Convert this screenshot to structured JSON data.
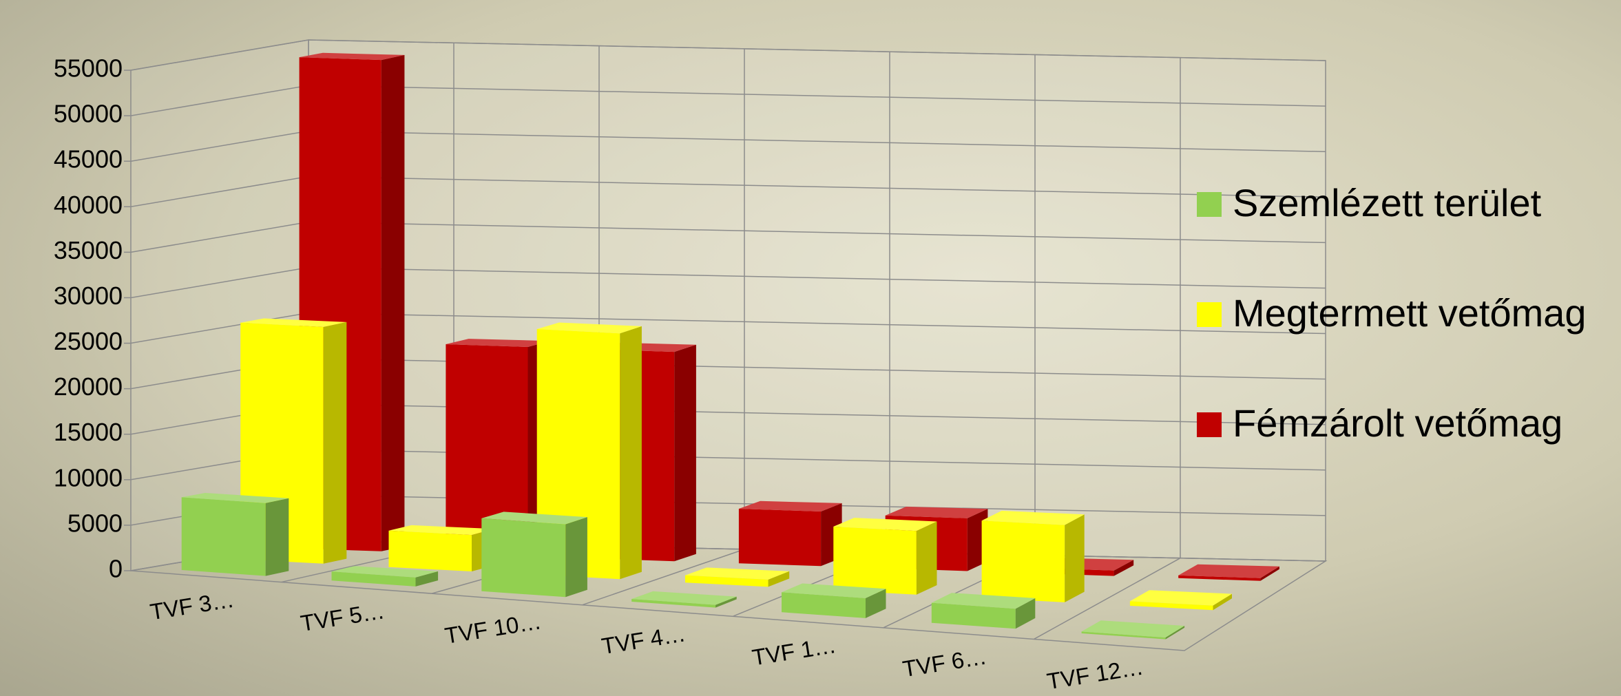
{
  "chart_data": {
    "type": "bar3d",
    "categories": [
      "TVF 3…",
      "TVF 5…",
      "TVF 10…",
      "TVF 4…",
      "TVF 1…",
      "TVF 6…",
      "TVF 12…"
    ],
    "series": [
      {
        "name": "Szemlézett terület",
        "color": "#92d050",
        "values": [
          8000,
          1000,
          8000,
          300,
          2200,
          2200,
          200
        ]
      },
      {
        "name": "Megtermett vetőmag",
        "color": "#ffff00",
        "values": [
          26000,
          4000,
          27000,
          800,
          7000,
          8500,
          500
        ]
      },
      {
        "name": "Fémzárolt vetőmag",
        "color": "#c00000",
        "values": [
          54000,
          23000,
          23000,
          6000,
          5800,
          600,
          300
        ]
      }
    ],
    "ylim": [
      0,
      55000
    ],
    "yticks": [
      0,
      5000,
      10000,
      15000,
      20000,
      25000,
      30000,
      35000,
      40000,
      45000,
      50000,
      55000
    ],
    "grid": true,
    "legend": "right"
  }
}
